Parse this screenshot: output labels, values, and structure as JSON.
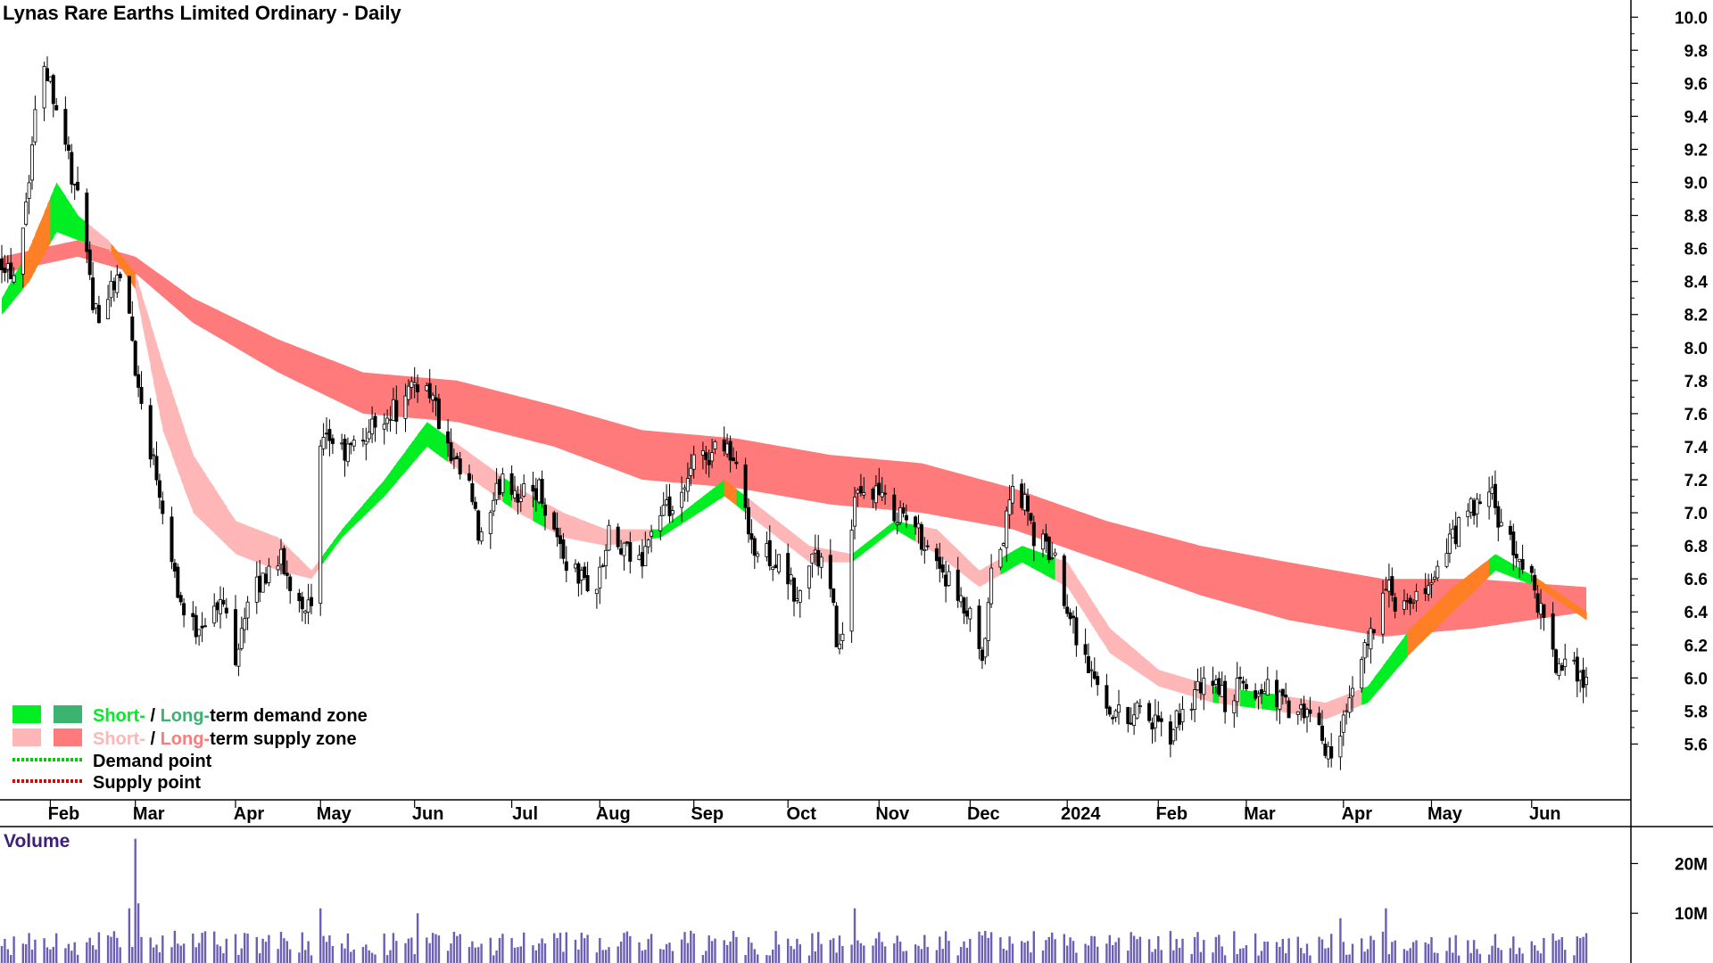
{
  "chart": {
    "title": "Lynas Rare Earths Limited Ordinary - Daily",
    "colors": {
      "short_demand": "#00ee22",
      "long_demand": "#3cb371",
      "short_supply": "#ffb6b6",
      "long_supply": "#ff7a7a",
      "overlap": "#ff7f24",
      "demand_point": "#00cc00",
      "supply_point": "#dd0000",
      "candle": "#000000",
      "volume_bar": "#6b5fb5"
    },
    "legend": {
      "zone_short_demand": "Short-",
      "zone_sep_demand": " / ",
      "zone_long_demand": "Long-",
      "zone_rest_demand": "term demand zone",
      "zone_short_supply": "Short-",
      "zone_sep_supply": " / ",
      "zone_long_supply": "Long-",
      "zone_rest_supply": "term supply zone",
      "demand_point": "Demand point",
      "supply_point": "Supply point"
    },
    "volume_label": "Volume"
  },
  "chart_data": {
    "type": "candlestick",
    "title": "Lynas Rare Earths Limited Ordinary - Daily",
    "ylim": [
      5.3,
      10.05
    ],
    "y_ticks": [
      5.6,
      5.8,
      6.0,
      6.2,
      6.4,
      6.6,
      6.8,
      7.0,
      7.2,
      7.4,
      7.6,
      7.8,
      8.0,
      8.2,
      8.4,
      8.6,
      8.8,
      9.0,
      9.2,
      9.4,
      9.6,
      9.8,
      10.0
    ],
    "y_tick_labels": [
      "5.6",
      "5.8",
      "6.0",
      "6.2",
      "6.4",
      "6.6",
      "6.8",
      "7.0",
      "7.2",
      "7.4",
      "7.6",
      "7.8",
      "8.0",
      "8.2",
      "8.4",
      "8.6",
      "8.8",
      "9.0",
      "9.2",
      "9.4",
      "9.6",
      "9.8",
      "10.0"
    ],
    "x_range": [
      "2023-01-16",
      "2024-06-21"
    ],
    "x_ticks": [
      {
        "date": "2023-02-01",
        "label": "Feb"
      },
      {
        "date": "2023-03-01",
        "label": "Mar"
      },
      {
        "date": "2023-04-03",
        "label": "Apr"
      },
      {
        "date": "2023-05-01",
        "label": "May"
      },
      {
        "date": "2023-06-01",
        "label": "Jun"
      },
      {
        "date": "2023-07-03",
        "label": "Jul"
      },
      {
        "date": "2023-08-01",
        "label": "Aug"
      },
      {
        "date": "2023-09-01",
        "label": "Sep"
      },
      {
        "date": "2023-10-02",
        "label": "Oct"
      },
      {
        "date": "2023-11-01",
        "label": "Nov"
      },
      {
        "date": "2023-12-01",
        "label": "Dec"
      },
      {
        "date": "2024-01-02",
        "label": "2024"
      },
      {
        "date": "2024-02-01",
        "label": "Feb"
      },
      {
        "date": "2024-03-01",
        "label": "Mar"
      },
      {
        "date": "2024-04-02",
        "label": "Apr"
      },
      {
        "date": "2024-05-01",
        "label": "May"
      },
      {
        "date": "2024-06-03",
        "label": "Jun"
      }
    ],
    "price_path": [
      [
        "2023-01-16",
        8.55
      ],
      [
        "2023-01-20",
        8.45
      ],
      [
        "2023-01-24",
        8.9
      ],
      [
        "2023-01-27",
        9.4
      ],
      [
        "2023-01-30",
        9.75
      ],
      [
        "2023-02-02",
        9.55
      ],
      [
        "2023-02-06",
        9.25
      ],
      [
        "2023-02-09",
        8.95
      ],
      [
        "2023-02-13",
        8.65
      ],
      [
        "2023-02-15",
        8.15
      ],
      [
        "2023-02-20",
        8.35
      ],
      [
        "2023-02-23",
        8.45
      ],
      [
        "2023-02-27",
        8.2
      ],
      [
        "2023-03-02",
        7.75
      ],
      [
        "2023-03-06",
        7.4
      ],
      [
        "2023-03-09",
        7.15
      ],
      [
        "2023-03-13",
        6.75
      ],
      [
        "2023-03-16",
        6.45
      ],
      [
        "2023-03-20",
        6.3
      ],
      [
        "2023-03-23",
        6.35
      ],
      [
        "2023-03-27",
        6.4
      ],
      [
        "2023-03-30",
        6.45
      ],
      [
        "2023-04-03",
        6.15
      ],
      [
        "2023-04-06",
        6.4
      ],
      [
        "2023-04-12",
        6.6
      ],
      [
        "2023-04-17",
        6.75
      ],
      [
        "2023-04-20",
        6.6
      ],
      [
        "2023-04-24",
        6.5
      ],
      [
        "2023-04-28",
        6.4
      ],
      [
        "2023-05-01",
        7.35
      ],
      [
        "2023-05-04",
        7.45
      ],
      [
        "2023-05-09",
        7.35
      ],
      [
        "2023-05-15",
        7.45
      ],
      [
        "2023-05-22",
        7.6
      ],
      [
        "2023-05-29",
        7.65
      ],
      [
        "2023-06-01",
        7.8
      ],
      [
        "2023-06-06",
        7.75
      ],
      [
        "2023-06-13",
        7.3
      ],
      [
        "2023-06-19",
        7.15
      ],
      [
        "2023-06-22",
        6.85
      ],
      [
        "2023-06-26",
        6.95
      ],
      [
        "2023-06-30",
        7.25
      ],
      [
        "2023-07-06",
        7.1
      ],
      [
        "2023-07-12",
        7.15
      ],
      [
        "2023-07-17",
        6.9
      ],
      [
        "2023-07-21",
        6.7
      ],
      [
        "2023-07-26",
        6.6
      ],
      [
        "2023-07-31",
        6.55
      ],
      [
        "2023-08-04",
        6.85
      ],
      [
        "2023-08-09",
        6.75
      ],
      [
        "2023-08-14",
        6.7
      ],
      [
        "2023-08-18",
        6.9
      ],
      [
        "2023-08-23",
        7.0
      ],
      [
        "2023-08-28",
        7.05
      ],
      [
        "2023-09-01",
        7.3
      ],
      [
        "2023-09-06",
        7.35
      ],
      [
        "2023-09-11",
        7.45
      ],
      [
        "2023-09-14",
        7.3
      ],
      [
        "2023-09-18",
        7.05
      ],
      [
        "2023-09-21",
        6.75
      ],
      [
        "2023-09-26",
        6.75
      ],
      [
        "2023-10-02",
        6.6
      ],
      [
        "2023-10-05",
        6.45
      ],
      [
        "2023-10-10",
        6.75
      ],
      [
        "2023-10-13",
        6.7
      ],
      [
        "2023-10-16",
        6.5
      ],
      [
        "2023-10-19",
        6.15
      ],
      [
        "2023-10-24",
        7.05
      ],
      [
        "2023-10-30",
        7.15
      ],
      [
        "2023-11-03",
        7.05
      ],
      [
        "2023-11-08",
        7.0
      ],
      [
        "2023-11-13",
        6.9
      ],
      [
        "2023-11-17",
        6.8
      ],
      [
        "2023-11-22",
        6.65
      ],
      [
        "2023-11-27",
        6.45
      ],
      [
        "2023-12-01",
        6.35
      ],
      [
        "2023-12-05",
        6.05
      ],
      [
        "2023-12-08",
        6.6
      ],
      [
        "2023-12-12",
        6.85
      ],
      [
        "2023-12-15",
        7.15
      ],
      [
        "2023-12-19",
        7.05
      ],
      [
        "2023-12-22",
        6.85
      ],
      [
        "2023-12-28",
        6.75
      ],
      [
        "2024-01-03",
        6.4
      ],
      [
        "2024-01-08",
        6.1
      ],
      [
        "2024-01-12",
        5.95
      ],
      [
        "2024-01-17",
        5.8
      ],
      [
        "2024-01-22",
        5.75
      ],
      [
        "2024-01-26",
        5.85
      ],
      [
        "2024-01-31",
        5.7
      ],
      [
        "2024-02-05",
        5.65
      ],
      [
        "2024-02-09",
        5.8
      ],
      [
        "2024-02-14",
        5.9
      ],
      [
        "2024-02-19",
        6.0
      ],
      [
        "2024-02-23",
        5.85
      ],
      [
        "2024-02-28",
        5.95
      ],
      [
        "2024-03-04",
        5.9
      ],
      [
        "2024-03-08",
        5.95
      ],
      [
        "2024-03-13",
        5.85
      ],
      [
        "2024-03-18",
        5.75
      ],
      [
        "2024-03-22",
        5.8
      ],
      [
        "2024-03-26",
        5.6
      ],
      [
        "2024-03-28",
        5.55
      ],
      [
        "2024-04-03",
        5.75
      ],
      [
        "2024-04-08",
        6.1
      ],
      [
        "2024-04-12",
        6.35
      ],
      [
        "2024-04-16",
        6.55
      ],
      [
        "2024-04-19",
        6.45
      ],
      [
        "2024-04-24",
        6.4
      ],
      [
        "2024-04-29",
        6.55
      ],
      [
        "2024-05-03",
        6.65
      ],
      [
        "2024-05-08",
        6.85
      ],
      [
        "2024-05-13",
        7.0
      ],
      [
        "2024-05-17",
        7.05
      ],
      [
        "2024-05-21",
        7.1
      ],
      [
        "2024-05-23",
        6.95
      ],
      [
        "2024-05-28",
        6.75
      ],
      [
        "2024-05-31",
        6.7
      ],
      [
        "2024-06-04",
        6.55
      ],
      [
        "2024-06-07",
        6.3
      ],
      [
        "2024-06-12",
        6.05
      ],
      [
        "2024-06-17",
        6.05
      ],
      [
        "2024-06-21",
        6.0
      ]
    ],
    "long_term_zone_upper": [
      [
        "2023-01-16",
        8.55
      ],
      [
        "2023-02-10",
        8.65
      ],
      [
        "2023-03-01",
        8.55
      ],
      [
        "2023-03-20",
        8.3
      ],
      [
        "2023-04-17",
        8.05
      ],
      [
        "2023-05-15",
        7.85
      ],
      [
        "2023-06-15",
        7.8
      ],
      [
        "2023-07-17",
        7.65
      ],
      [
        "2023-08-15",
        7.5
      ],
      [
        "2023-09-15",
        7.45
      ],
      [
        "2023-10-16",
        7.35
      ],
      [
        "2023-11-15",
        7.3
      ],
      [
        "2023-12-15",
        7.15
      ],
      [
        "2024-01-15",
        6.95
      ],
      [
        "2024-02-15",
        6.8
      ],
      [
        "2024-03-15",
        6.7
      ],
      [
        "2024-04-15",
        6.6
      ],
      [
        "2024-05-15",
        6.6
      ],
      [
        "2024-06-21",
        6.55
      ]
    ],
    "long_term_zone_lower": [
      [
        "2023-01-16",
        8.45
      ],
      [
        "2023-02-10",
        8.55
      ],
      [
        "2023-03-01",
        8.45
      ],
      [
        "2023-03-20",
        8.15
      ],
      [
        "2023-04-17",
        7.85
      ],
      [
        "2023-05-15",
        7.6
      ],
      [
        "2023-06-15",
        7.55
      ],
      [
        "2023-07-17",
        7.4
      ],
      [
        "2023-08-15",
        7.2
      ],
      [
        "2023-09-15",
        7.15
      ],
      [
        "2023-10-16",
        7.05
      ],
      [
        "2023-11-15",
        7.0
      ],
      [
        "2023-12-15",
        6.9
      ],
      [
        "2024-01-15",
        6.7
      ],
      [
        "2024-02-15",
        6.5
      ],
      [
        "2024-03-15",
        6.35
      ],
      [
        "2024-04-15",
        6.25
      ],
      [
        "2024-05-15",
        6.3
      ],
      [
        "2024-06-21",
        6.4
      ]
    ],
    "short_term_zone_upper": [
      [
        "2023-01-16",
        8.3
      ],
      [
        "2023-01-25",
        8.6
      ],
      [
        "2023-02-03",
        9.0
      ],
      [
        "2023-02-10",
        8.8
      ],
      [
        "2023-02-20",
        8.65
      ],
      [
        "2023-03-01",
        8.45
      ],
      [
        "2023-03-10",
        7.9
      ],
      [
        "2023-03-20",
        7.35
      ],
      [
        "2023-04-03",
        6.95
      ],
      [
        "2023-04-17",
        6.85
      ],
      [
        "2023-04-28",
        6.65
      ],
      [
        "2023-05-08",
        6.9
      ],
      [
        "2023-05-22",
        7.2
      ],
      [
        "2023-06-05",
        7.55
      ],
      [
        "2023-06-20",
        7.35
      ],
      [
        "2023-07-05",
        7.15
      ],
      [
        "2023-07-20",
        7.0
      ],
      [
        "2023-08-03",
        6.9
      ],
      [
        "2023-08-21",
        6.9
      ],
      [
        "2023-09-11",
        7.2
      ],
      [
        "2023-09-25",
        7.0
      ],
      [
        "2023-10-09",
        6.8
      ],
      [
        "2023-10-23",
        6.75
      ],
      [
        "2023-11-06",
        6.95
      ],
      [
        "2023-11-20",
        6.9
      ],
      [
        "2023-12-04",
        6.65
      ],
      [
        "2023-12-18",
        6.8
      ],
      [
        "2024-01-02",
        6.7
      ],
      [
        "2024-01-16",
        6.3
      ],
      [
        "2024-02-01",
        6.05
      ],
      [
        "2024-02-19",
        5.95
      ],
      [
        "2024-03-11",
        5.9
      ],
      [
        "2024-03-27",
        5.85
      ],
      [
        "2024-04-10",
        5.95
      ],
      [
        "2024-04-24",
        6.3
      ],
      [
        "2024-05-08",
        6.55
      ],
      [
        "2024-05-22",
        6.75
      ],
      [
        "2024-06-05",
        6.6
      ],
      [
        "2024-06-21",
        6.4
      ]
    ],
    "short_term_zone_lower": [
      [
        "2023-01-16",
        8.2
      ],
      [
        "2023-01-25",
        8.4
      ],
      [
        "2023-02-03",
        8.7
      ],
      [
        "2023-02-10",
        8.65
      ],
      [
        "2023-02-20",
        8.6
      ],
      [
        "2023-03-01",
        8.35
      ],
      [
        "2023-03-10",
        7.5
      ],
      [
        "2023-03-20",
        7.0
      ],
      [
        "2023-04-03",
        6.75
      ],
      [
        "2023-04-17",
        6.65
      ],
      [
        "2023-04-28",
        6.6
      ],
      [
        "2023-05-08",
        6.85
      ],
      [
        "2023-05-22",
        7.1
      ],
      [
        "2023-06-05",
        7.4
      ],
      [
        "2023-06-20",
        7.2
      ],
      [
        "2023-07-05",
        7.0
      ],
      [
        "2023-07-20",
        6.85
      ],
      [
        "2023-08-03",
        6.8
      ],
      [
        "2023-08-21",
        6.85
      ],
      [
        "2023-09-11",
        7.1
      ],
      [
        "2023-09-25",
        6.9
      ],
      [
        "2023-10-09",
        6.7
      ],
      [
        "2023-10-23",
        6.7
      ],
      [
        "2023-11-06",
        6.9
      ],
      [
        "2023-11-20",
        6.75
      ],
      [
        "2023-12-04",
        6.55
      ],
      [
        "2023-12-18",
        6.7
      ],
      [
        "2024-01-02",
        6.55
      ],
      [
        "2024-01-16",
        6.15
      ],
      [
        "2024-02-01",
        5.95
      ],
      [
        "2024-02-19",
        5.85
      ],
      [
        "2024-03-11",
        5.8
      ],
      [
        "2024-03-27",
        5.75
      ],
      [
        "2024-04-10",
        5.85
      ],
      [
        "2024-04-24",
        6.15
      ],
      [
        "2024-05-08",
        6.4
      ],
      [
        "2024-05-22",
        6.65
      ],
      [
        "2024-06-05",
        6.55
      ],
      [
        "2024-06-21",
        6.35
      ]
    ],
    "volume": {
      "ylim": [
        0,
        26000000
      ],
      "y_ticks": [
        10000000,
        20000000
      ],
      "y_tick_labels": [
        "10M",
        "20M"
      ],
      "peaks": [
        [
          "2023-03-01",
          25000000
        ],
        [
          "2023-03-02",
          12000000
        ],
        [
          "2023-02-27",
          11000000
        ],
        [
          "2023-05-01",
          11000000
        ],
        [
          "2023-06-02",
          10000000
        ],
        [
          "2023-10-24",
          11000000
        ],
        [
          "2024-04-16",
          11000000
        ],
        [
          "2024-04-01",
          9000000
        ],
        [
          "2024-06-21",
          6000000
        ]
      ],
      "typical_range": [
        1500000,
        6500000
      ]
    }
  }
}
